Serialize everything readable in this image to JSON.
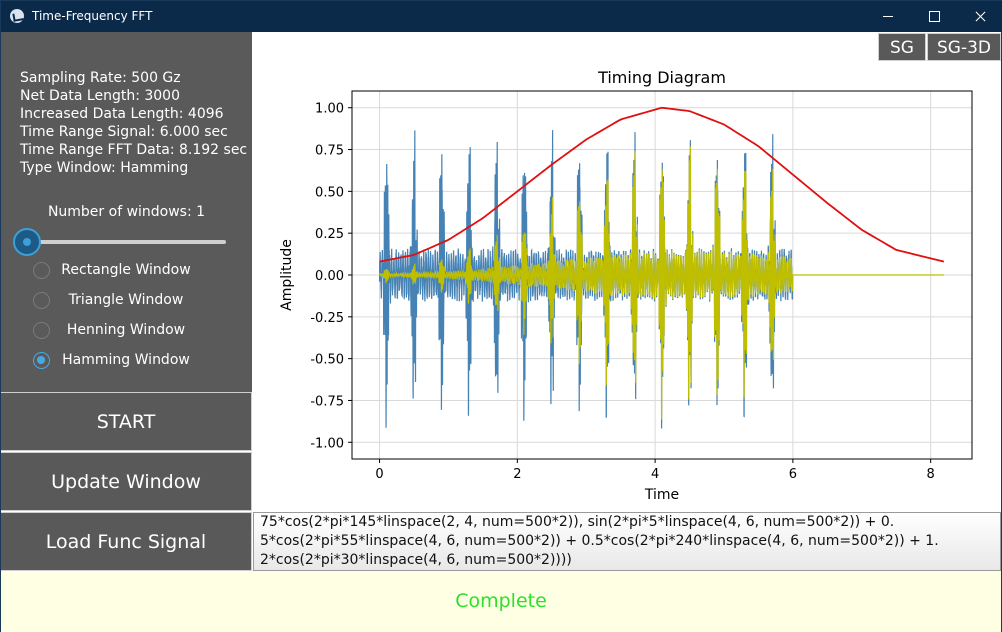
{
  "window": {
    "title": "Time-Frequency FFT"
  },
  "info": {
    "lines": [
      "Sampling Rate: 500 Gz",
      "Net Data Length: 3000",
      "Increased Data Length: 4096",
      "Time Range Signal: 6.000 sec",
      "Time Range FFT Data: 8.192 sec",
      "Type Window: Hamming"
    ]
  },
  "windows": {
    "label": "Number of windows: 1",
    "value": 1
  },
  "radios": [
    {
      "label": "Rectangle Window",
      "checked": false
    },
    {
      "label": "Triangle Window",
      "checked": false
    },
    {
      "label": "Henning Window",
      "checked": false
    },
    {
      "label": "Hamming Window",
      "checked": true
    }
  ],
  "buttons": {
    "start": "START",
    "update": "Update Window",
    "load": "Load Func Signal",
    "sg": "SG",
    "sg3d": "SG-3D"
  },
  "func_text": [
    "75*cos(2*pi*145*linspace(2, 4, num=500*2)), sin(2*pi*5*linspace(4, 6, num=500*2)) + 0.",
    "5*cos(2*pi*55*linspace(4, 6, num=500*2)) + 0.5*cos(2*pi*240*linspace(4, 6, num=500*2)) + 1.",
    "2*cos(2*pi*30*linspace(4, 6, num=500*2))))"
  ],
  "status": "Complete",
  "colors": {
    "signal": "#4682b4",
    "windowed": "#bfbf00",
    "window_curve": "#e01010",
    "status": "#2de02d"
  },
  "chart_data": {
    "type": "line",
    "title": "Timing Diagram",
    "xlabel": "Time",
    "ylabel": "Amplitude",
    "xlim": [
      -0.4,
      8.6
    ],
    "ylim": [
      -1.1,
      1.1
    ],
    "xticks": [
      0,
      2,
      4,
      6,
      8
    ],
    "yticks": [
      -1.0,
      -0.75,
      -0.5,
      -0.25,
      0.0,
      0.25,
      0.5,
      0.75,
      1.0
    ],
    "grid": true,
    "series": [
      {
        "style": "signal",
        "x_range": [
          0,
          6
        ],
        "amplitude_range": [
          -1.0,
          0.86
        ]
      },
      {
        "style": "windowed",
        "x_range": [
          0,
          8.192
        ],
        "peak": 0.95,
        "zero_after": 6
      },
      {
        "style": "window_curve",
        "x": [
          0,
          0.5,
          1,
          1.5,
          2,
          2.5,
          3,
          3.5,
          4.096,
          4.5,
          5,
          5.5,
          6,
          6.5,
          7,
          7.5,
          8.192
        ],
        "y": [
          0.08,
          0.12,
          0.21,
          0.34,
          0.5,
          0.66,
          0.81,
          0.93,
          1.0,
          0.98,
          0.9,
          0.77,
          0.6,
          0.43,
          0.27,
          0.15,
          0.08
        ]
      }
    ]
  }
}
